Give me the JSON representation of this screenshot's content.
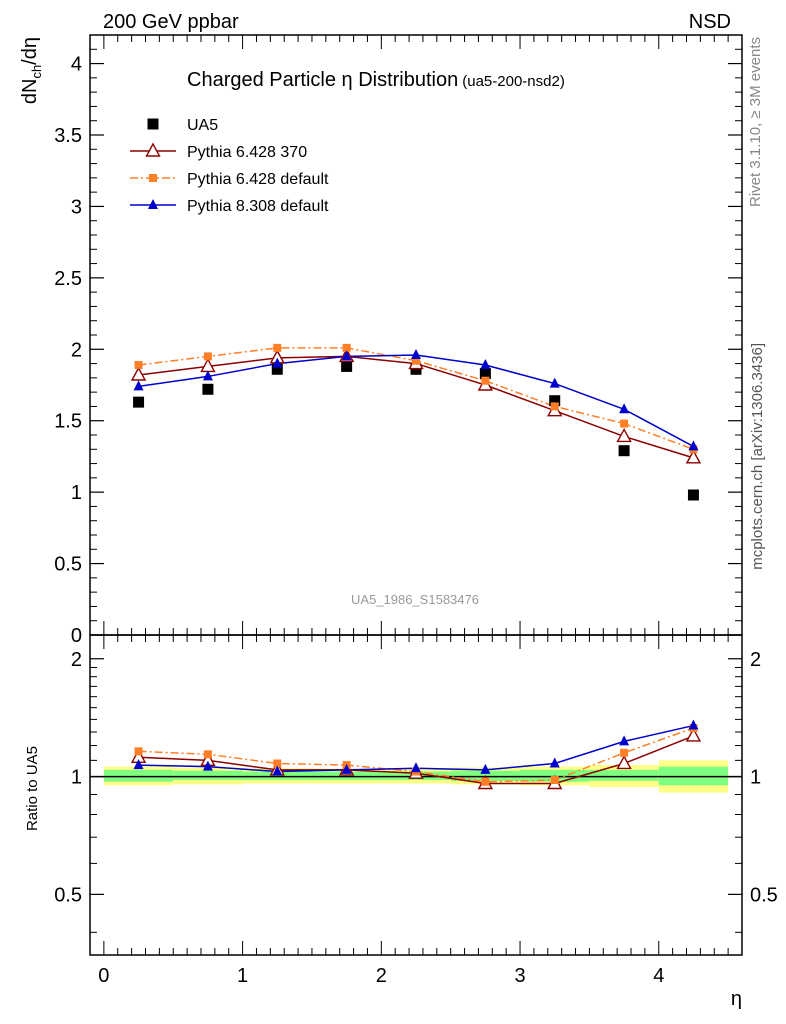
{
  "header": {
    "left": "200 GeV ppbar",
    "right": "NSD"
  },
  "side": {
    "rivet": "Rivet 3.1.10, ≥ 3M events",
    "site": "mcplots.cern.ch [arXiv:1306.3436]"
  },
  "watermark": "UA5_1986_S1583476",
  "colors": {
    "data": "#000000",
    "p6_370": "#8b0000",
    "p6_default": "#ff7f27",
    "p8": "#0000cc",
    "band_inner": "#7fff7f",
    "band_outer": "#ffff88"
  },
  "chart_data": [
    {
      "type": "scatter",
      "panel": "main",
      "title": "Charged Particle η Distribution",
      "subtitle": "(ua5-200-nsd2)",
      "ylabel_main": "dN",
      "ylabel_sub": "ch",
      "ylabel_rest": "/dη",
      "xlim": [
        -0.1,
        4.6
      ],
      "ylim": [
        0,
        4.2
      ],
      "yticks": [
        "0",
        "0.5",
        "1",
        "1.5",
        "2",
        "2.5",
        "3",
        "3.5",
        "4"
      ],
      "x": [
        0.25,
        0.75,
        1.25,
        1.75,
        2.25,
        2.75,
        3.25,
        3.75,
        4.25
      ],
      "series": [
        {
          "name": "UA5",
          "marker": "square",
          "values": [
            1.63,
            1.72,
            1.86,
            1.88,
            1.86,
            1.83,
            1.64,
            1.29,
            0.98
          ]
        },
        {
          "name": "Pythia 6.428 370",
          "marker": "open-triangle",
          "values": [
            1.82,
            1.88,
            1.94,
            1.95,
            1.9,
            1.75,
            1.57,
            1.39,
            1.24
          ]
        },
        {
          "name": "Pythia 6.428 default",
          "marker": "small-square",
          "values": [
            1.89,
            1.95,
            2.01,
            2.01,
            1.92,
            1.78,
            1.6,
            1.48,
            1.3
          ]
        },
        {
          "name": "Pythia 8.308 default",
          "marker": "filled-triangle",
          "values": [
            1.74,
            1.81,
            1.9,
            1.95,
            1.96,
            1.89,
            1.76,
            1.58,
            1.32
          ]
        }
      ]
    },
    {
      "type": "scatter",
      "panel": "ratio",
      "ylabel": "Ratio to UA5",
      "xlabel": "η",
      "xlim": [
        -0.1,
        4.6
      ],
      "ylim": [
        0.35,
        2.3
      ],
      "log_y": true,
      "yticks": [
        "0.5",
        "1",
        "2"
      ],
      "xticks": [
        "0",
        "1",
        "2",
        "3",
        "4"
      ],
      "x": [
        0.25,
        0.75,
        1.25,
        1.75,
        2.25,
        2.75,
        3.25,
        3.75,
        4.25
      ],
      "bins": [
        0,
        0.5,
        1.0,
        1.5,
        2.0,
        2.5,
        3.0,
        3.5,
        4.0,
        4.5
      ],
      "band_inner": [
        [
          0.97,
          1.04
        ],
        [
          0.98,
          1.035
        ],
        [
          0.98,
          1.03
        ],
        [
          0.98,
          1.03
        ],
        [
          0.98,
          1.03
        ],
        [
          0.975,
          1.035
        ],
        [
          0.97,
          1.04
        ],
        [
          0.975,
          1.04
        ],
        [
          0.95,
          1.06
        ]
      ],
      "band_outer": [
        [
          0.95,
          1.06
        ],
        [
          0.955,
          1.055
        ],
        [
          0.96,
          1.05
        ],
        [
          0.96,
          1.05
        ],
        [
          0.96,
          1.05
        ],
        [
          0.955,
          1.055
        ],
        [
          0.95,
          1.06
        ],
        [
          0.94,
          1.07
        ],
        [
          0.91,
          1.1
        ]
      ],
      "series": [
        {
          "name": "Pythia 6.428 370",
          "values": [
            1.12,
            1.1,
            1.04,
            1.04,
            1.02,
            0.96,
            0.96,
            1.08,
            1.27
          ]
        },
        {
          "name": "Pythia 6.428 default",
          "values": [
            1.16,
            1.14,
            1.08,
            1.07,
            1.03,
            0.97,
            0.98,
            1.15,
            1.33
          ]
        },
        {
          "name": "Pythia 8.308 default",
          "values": [
            1.07,
            1.06,
            1.03,
            1.04,
            1.05,
            1.04,
            1.08,
            1.23,
            1.35
          ]
        }
      ]
    }
  ]
}
